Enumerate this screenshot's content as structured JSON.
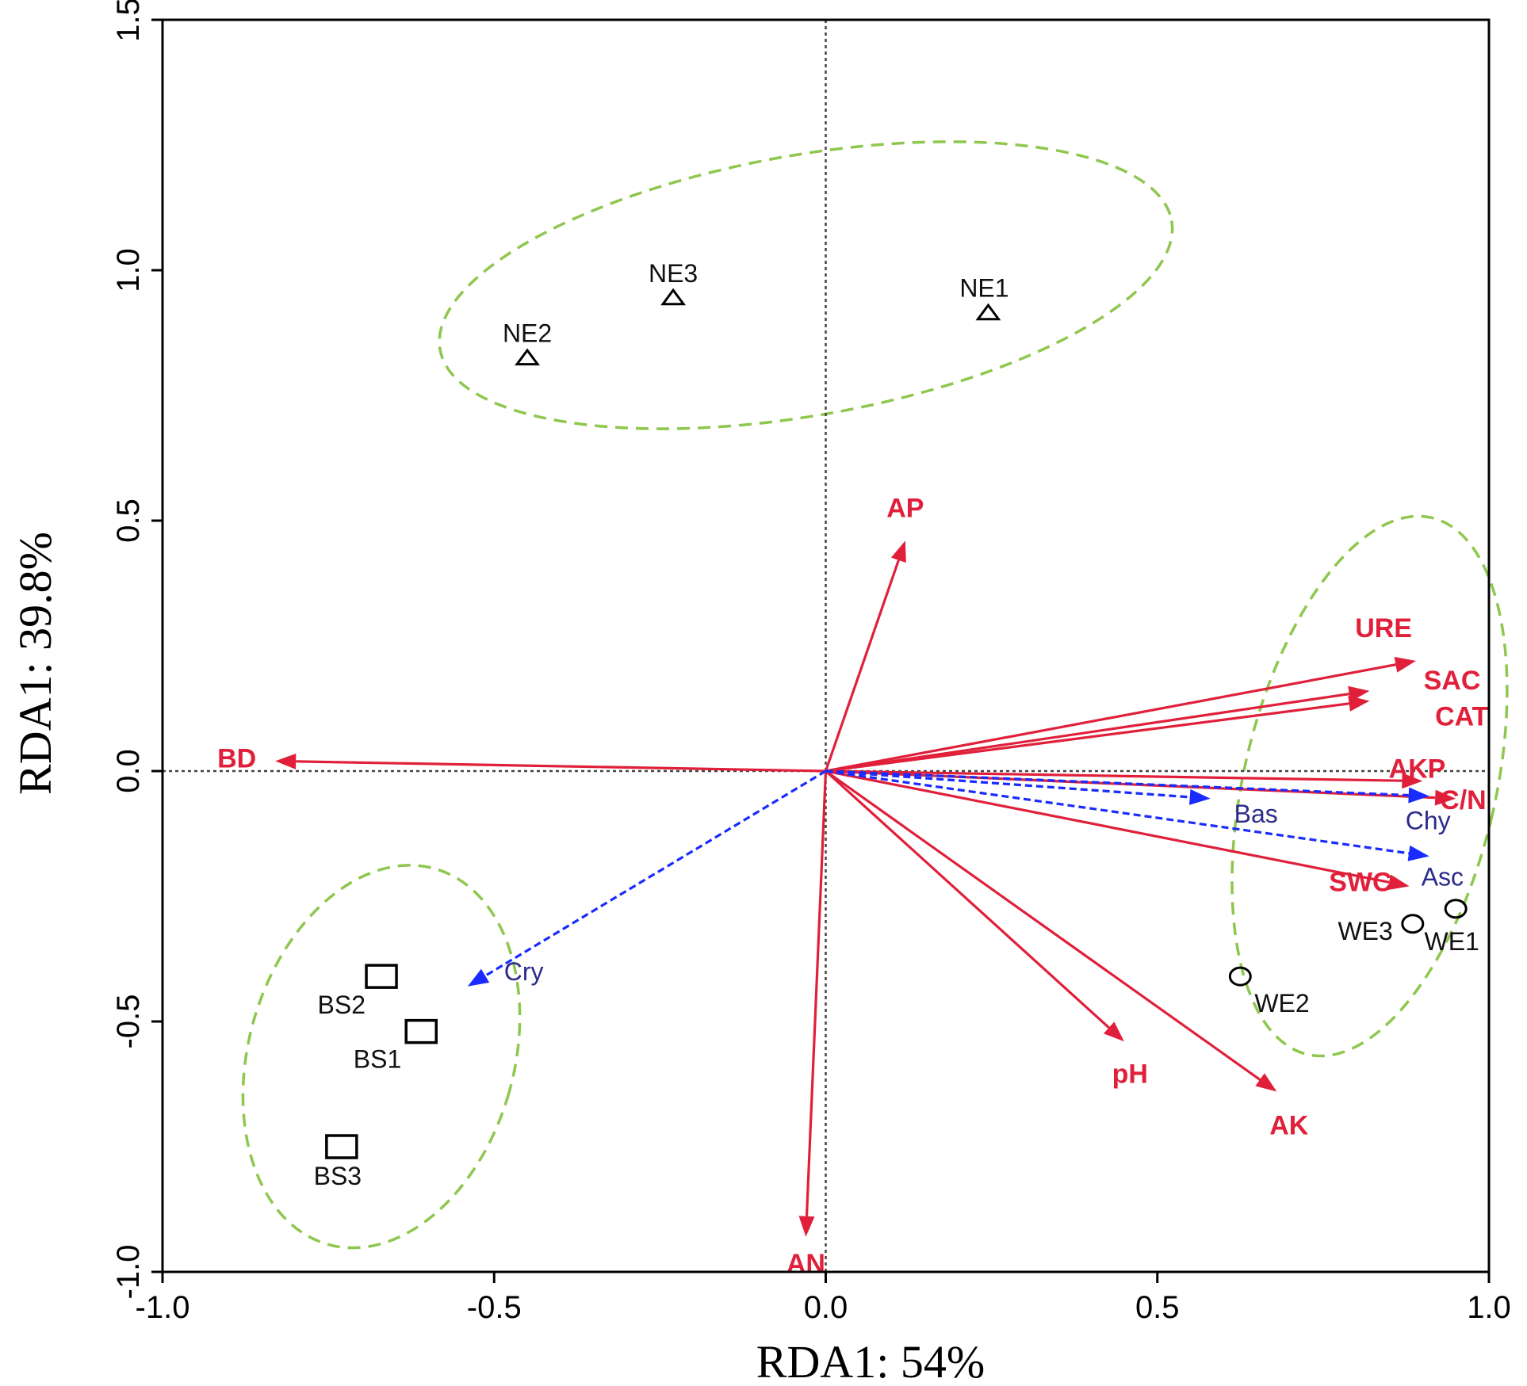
{
  "chart_data": {
    "type": "scatter",
    "subtype": "RDA biplot",
    "xlabel": "RDA1: 54%",
    "ylabel": "RDA1: 39.8%",
    "xlim": [
      -1.0,
      1.0
    ],
    "ylim": [
      -1.0,
      1.5
    ],
    "xticks": [
      -1.0,
      -0.5,
      0.0,
      0.5,
      1.0
    ],
    "yticks": [
      -1.0,
      -0.5,
      0.0,
      0.5,
      1.0,
      1.5
    ],
    "xtick_labels": [
      "-1.0",
      "-0.5",
      "0.0",
      "0.5",
      "1.0"
    ],
    "ytick_labels": [
      "-1.0",
      "-0.5",
      "0.0",
      "0.5",
      "1.0",
      "1.5"
    ],
    "reference_lines": {
      "x": 0.0,
      "y": 0.0,
      "style": "dotted"
    },
    "colors": {
      "environment": "#e0203a",
      "species": "#1a2bff",
      "species_label": "#2b2b8c",
      "ellipse": "#8fc74e",
      "sites": "#000000"
    },
    "environment_vectors": [
      {
        "name": "AP",
        "x": 0.12,
        "y": 0.46
      },
      {
        "name": "URE",
        "x": 0.89,
        "y": 0.22
      },
      {
        "name": "SAC",
        "x": 0.82,
        "y": 0.16
      },
      {
        "name": "CAT",
        "x": 0.82,
        "y": 0.14
      },
      {
        "name": "AKP",
        "x": 0.9,
        "y": -0.02
      },
      {
        "name": "C/N",
        "x": 0.95,
        "y": -0.055
      },
      {
        "name": "SWC",
        "x": 0.88,
        "y": -0.23
      },
      {
        "name": "BD",
        "x": -0.83,
        "y": 0.02
      },
      {
        "name": "pH",
        "x": 0.45,
        "y": -0.54
      },
      {
        "name": "AK",
        "x": 0.68,
        "y": -0.64
      },
      {
        "name": "AN",
        "x": -0.03,
        "y": -0.93
      }
    ],
    "species_vectors": [
      {
        "name": "Bas",
        "x": 0.58,
        "y": -0.055
      },
      {
        "name": "Chy",
        "x": 0.91,
        "y": -0.05
      },
      {
        "name": "Asc",
        "x": 0.91,
        "y": -0.17
      },
      {
        "name": "Cry",
        "x": -0.54,
        "y": -0.43
      }
    ],
    "sites": [
      {
        "name": "NE1",
        "group": "NE",
        "marker": "triangle",
        "x": 0.245,
        "y": 0.915
      },
      {
        "name": "NE2",
        "group": "NE",
        "marker": "triangle",
        "x": -0.45,
        "y": 0.825
      },
      {
        "name": "NE3",
        "group": "NE",
        "marker": "triangle",
        "x": -0.23,
        "y": 0.945
      },
      {
        "name": "WE1",
        "group": "WE",
        "marker": "circle",
        "x": 0.95,
        "y": -0.275
      },
      {
        "name": "WE2",
        "group": "WE",
        "marker": "circle",
        "x": 0.625,
        "y": -0.41
      },
      {
        "name": "WE3",
        "group": "WE",
        "marker": "circle",
        "x": 0.885,
        "y": -0.305
      },
      {
        "name": "BS1",
        "group": "BS",
        "marker": "square",
        "x": -0.61,
        "y": -0.52
      },
      {
        "name": "BS2",
        "group": "BS",
        "marker": "square",
        "x": -0.67,
        "y": -0.41
      },
      {
        "name": "BS3",
        "group": "BS",
        "marker": "square",
        "x": -0.73,
        "y": -0.75
      }
    ],
    "group_ellipses": [
      {
        "group": "NE",
        "cx": -0.03,
        "cy": 0.97,
        "rx": 0.56,
        "ry": 0.26,
        "angle_deg": 10
      },
      {
        "group": "WE",
        "cx": 0.82,
        "cy": -0.03,
        "rx": 0.19,
        "ry": 0.55,
        "angle_deg": -13
      },
      {
        "group": "BS",
        "cx": -0.67,
        "cy": -0.57,
        "rx": 0.2,
        "ry": 0.39,
        "angle_deg": -16
      }
    ]
  }
}
